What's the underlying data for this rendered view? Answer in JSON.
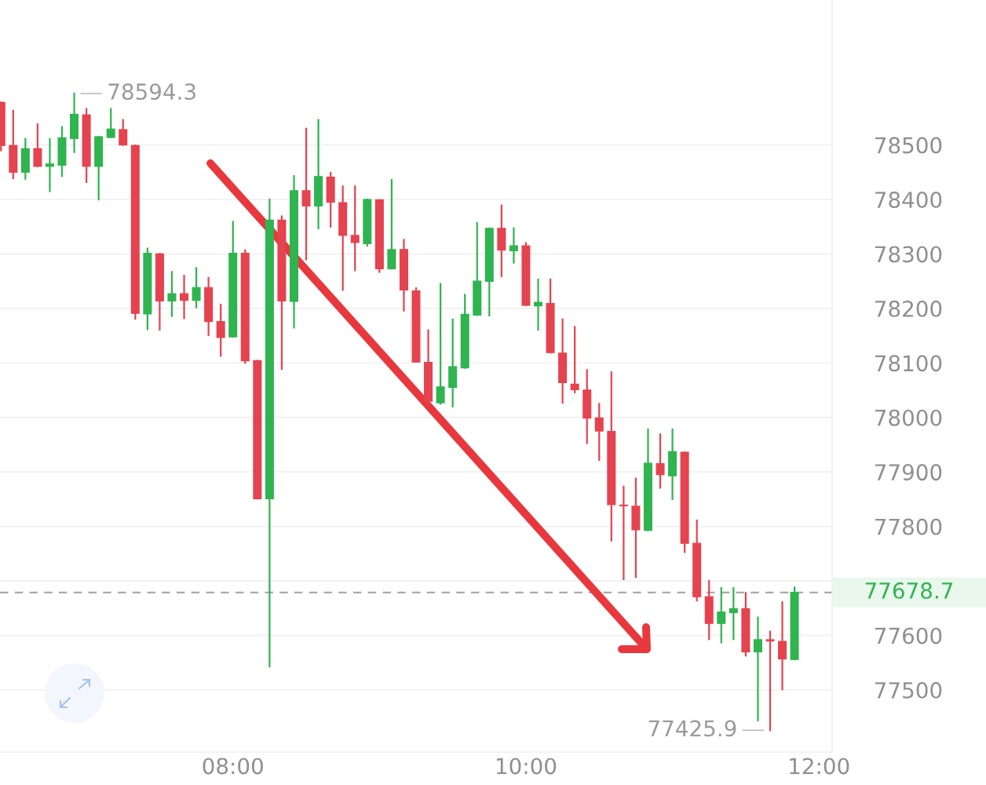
{
  "chart_data": {
    "type": "candlestick",
    "x": [
      6.4167,
      6.5,
      6.5833,
      6.6667,
      6.75,
      6.8333,
      6.9167,
      7,
      7.0833,
      7.1667,
      7.25,
      7.3333,
      7.4167,
      7.5,
      7.5833,
      7.6667,
      7.75,
      7.8333,
      7.9167,
      8,
      8.0833,
      8.1667,
      8.25,
      8.3333,
      8.4167,
      8.5,
      8.5833,
      8.6667,
      8.75,
      8.8333,
      8.9167,
      9,
      9.0833,
      9.1667,
      9.25,
      9.3333,
      9.4167,
      9.5,
      9.5833,
      9.6667,
      9.75,
      9.8333,
      9.9167,
      10,
      10.0833,
      10.1667,
      10.25,
      10.3333,
      10.4167,
      10.5,
      10.5833,
      10.6667,
      10.75,
      10.8333,
      10.9167,
      11,
      11.0833,
      11.1667,
      11.25,
      11.3333,
      11.4167,
      11.5,
      11.5833,
      11.6667,
      11.75,
      11.8333
    ],
    "ohlc": [
      [
        78578,
        78578,
        78490,
        78499
      ],
      [
        78499,
        78563,
        78439,
        78450
      ],
      [
        78450,
        78511,
        78438,
        78493
      ],
      [
        78493,
        78538,
        78461,
        78461
      ],
      [
        78461,
        78511,
        78415,
        78465
      ],
      [
        78463,
        78533,
        78443,
        78513
      ],
      [
        78512,
        78594.3,
        78487,
        78556
      ],
      [
        78555,
        78566,
        78432,
        78461
      ],
      [
        78461,
        78515,
        78400,
        78515
      ],
      [
        78514,
        78566,
        78514,
        78529
      ],
      [
        78528,
        78546,
        78500,
        78500
      ],
      [
        78499,
        78499,
        78181,
        78191
      ],
      [
        78190,
        78310,
        78162,
        78301
      ],
      [
        78300,
        78300,
        78161,
        78214
      ],
      [
        78214,
        78267,
        78186,
        78227
      ],
      [
        78227,
        78260,
        78182,
        78215
      ],
      [
        78215,
        78274,
        78202,
        78238
      ],
      [
        78238,
        78256,
        78151,
        78176
      ],
      [
        78176,
        78207,
        78113,
        78147
      ],
      [
        78148,
        78359,
        78148,
        78301
      ],
      [
        78301,
        78307,
        78100,
        78104
      ],
      [
        78104,
        78104,
        77851,
        77851
      ],
      [
        77851,
        78400,
        77543,
        78362
      ],
      [
        78362,
        78369,
        78089,
        78214
      ],
      [
        78213,
        78443,
        78165,
        78416
      ],
      [
        78416,
        78530,
        78290,
        78388
      ],
      [
        78388,
        78546,
        78347,
        78442
      ],
      [
        78441,
        78449,
        78350,
        78395
      ],
      [
        78394,
        78424,
        78234,
        78334
      ],
      [
        78334,
        78424,
        78270,
        78321
      ],
      [
        78319,
        78400,
        78315,
        78400
      ],
      [
        78399,
        78399,
        78267,
        78273
      ],
      [
        78273,
        78436,
        78273,
        78308
      ],
      [
        78308,
        78326,
        78196,
        78234
      ],
      [
        78232,
        78237,
        78102,
        78102
      ],
      [
        78101,
        78160,
        78022,
        78030
      ],
      [
        78027,
        78245,
        78025,
        78056
      ],
      [
        78055,
        78180,
        78020,
        78093
      ],
      [
        78091,
        78225,
        78091,
        78189
      ],
      [
        78188,
        78357,
        78188,
        78250
      ],
      [
        78250,
        78347,
        78187,
        78347
      ],
      [
        78347,
        78389,
        78259,
        78307
      ],
      [
        78306,
        78347,
        78284,
        78315
      ],
      [
        78315,
        78320,
        78206,
        78206
      ],
      [
        78205,
        78253,
        78161,
        78211
      ],
      [
        78209,
        78253,
        78119,
        78119
      ],
      [
        78118,
        78180,
        78027,
        78064
      ],
      [
        78061,
        78166,
        78046,
        78051
      ],
      [
        78050,
        78087,
        77953,
        77999
      ],
      [
        77999,
        78025,
        77922,
        77975
      ],
      [
        77974,
        78083,
        77774,
        77840
      ],
      [
        77839,
        77873,
        77703,
        77838
      ],
      [
        77837,
        77888,
        77707,
        77794
      ],
      [
        77793,
        77978,
        77793,
        77916
      ],
      [
        77915,
        77969,
        77871,
        77895
      ],
      [
        77893,
        77978,
        77850,
        77937
      ],
      [
        77936,
        77936,
        77753,
        77769
      ],
      [
        77769,
        77811,
        77664,
        77671
      ],
      [
        77671,
        77700,
        77593,
        77622
      ],
      [
        77622,
        77687,
        77587,
        77643
      ],
      [
        77642,
        77687,
        77593,
        77649
      ],
      [
        77649,
        77678,
        77563,
        77570
      ],
      [
        77570,
        77633,
        77444,
        77592
      ],
      [
        77592,
        77607,
        77425.9,
        77590
      ],
      [
        77589,
        77661,
        77501,
        77557
      ],
      [
        77556,
        77688,
        77556,
        77678.7
      ]
    ],
    "colors": [
      "#e5434f",
      "#e5434f",
      "#2fb450",
      "#e5434f",
      "#2fb450",
      "#2fb450",
      "#2fb450",
      "#e5434f",
      "#2fb450",
      "#2fb450",
      "#e5434f",
      "#e5434f",
      "#2fb450",
      "#e5434f",
      "#2fb450",
      "#e5434f",
      "#2fb450",
      "#e5434f",
      "#e5434f",
      "#2fb450",
      "#e5434f",
      "#e5434f",
      "#2fb450",
      "#e5434f",
      "#2fb450",
      "#e5434f",
      "#2fb450",
      "#e5434f",
      "#e5434f",
      "#e5434f",
      "#2fb450",
      "#e5434f",
      "#2fb450",
      "#e5434f",
      "#e5434f",
      "#e5434f",
      "#2fb450",
      "#2fb450",
      "#2fb450",
      "#2fb450",
      "#2fb450",
      "#e5434f",
      "#2fb450",
      "#e5434f",
      "#2fb450",
      "#e5434f",
      "#e5434f",
      "#e5434f",
      "#e5434f",
      "#e5434f",
      "#e5434f",
      "#e5434f",
      "#e5434f",
      "#2fb450",
      "#e5434f",
      "#2fb450",
      "#e5434f",
      "#e5434f",
      "#e5434f",
      "#2fb450",
      "#2fb450",
      "#e5434f",
      "#2fb450",
      "#e5434f",
      "#e5434f",
      "#2fb450"
    ],
    "xlim": [
      6.41,
      12.09
    ],
    "xticks": [
      {
        "value": 8,
        "label": "08:00"
      },
      {
        "value": 10,
        "label": "10:00"
      },
      {
        "value": 12,
        "label": "12:00"
      }
    ],
    "ylim": [
      77386,
      78766
    ],
    "yticks": [
      77500,
      77600,
      {
        "value": 77700,
        "label": null
      },
      77800,
      77900,
      78000,
      78100,
      78200,
      78300,
      78400,
      78500
    ],
    "grid": "y",
    "ref_lines": [
      {
        "axis": "y",
        "value": 77678.7,
        "label": "77678.7",
        "color": "#a0a0a0",
        "line_style": "dashed"
      }
    ],
    "annotations": [
      {
        "text": "78594.3",
        "x": 6.9167,
        "y": 78594.3
      },
      {
        "text": "77425.9",
        "x": 11.6667,
        "y": 77425.9
      }
    ]
  }
}
